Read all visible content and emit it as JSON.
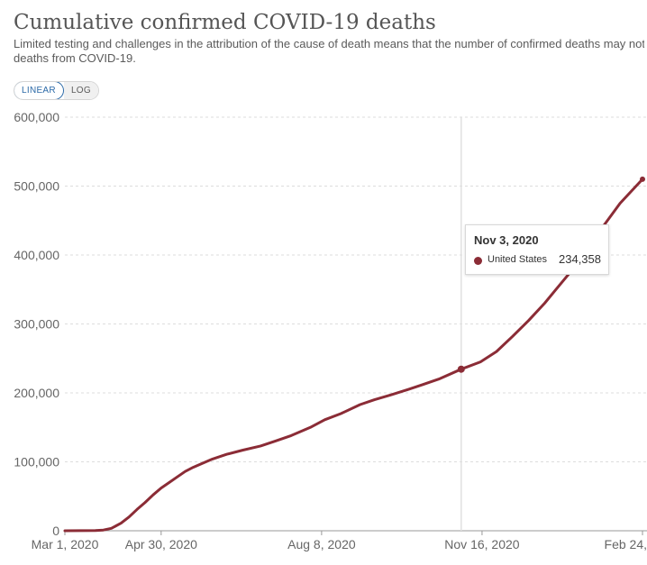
{
  "title": "Cumulative confirmed COVID-19 deaths",
  "subtitle_line1": "Limited testing and challenges in the attribution of the cause of death means that the number of confirmed deaths may not be a",
  "subtitle_line2": "deaths from COVID-19.",
  "scale_toggle": {
    "linear": "LINEAR",
    "log": "LOG",
    "selected": "LINEAR"
  },
  "tooltip": {
    "date": "Nov 3, 2020",
    "series": "United States",
    "value": "234,358"
  },
  "colors": {
    "series": "#8b2c36",
    "grid": "#dddddd",
    "hover_line": "#e0e0e0"
  },
  "chart_data": {
    "type": "line",
    "ylim": [
      0,
      600000
    ],
    "yticks": [
      0,
      100000,
      200000,
      300000,
      400000,
      500000,
      600000
    ],
    "ytick_labels": [
      "0",
      "100,000",
      "200,000",
      "300,000",
      "400,000",
      "500,000",
      "600,000"
    ],
    "xlim": [
      "2020-03-01",
      "2021-02-24"
    ],
    "xticks": [
      "2020-03-01",
      "2020-04-30",
      "2020-08-08",
      "2020-11-16",
      "2021-02-24"
    ],
    "xtick_labels": [
      "Mar 1, 2020",
      "Apr 30, 2020",
      "Aug 8, 2020",
      "Nov 16, 2020",
      "Feb 24,"
    ],
    "highlight_x": "2020-11-03",
    "series": [
      {
        "name": "United States",
        "points": [
          [
            "2020-03-01",
            0
          ],
          [
            "2020-03-20",
            250
          ],
          [
            "2020-03-25",
            1000
          ],
          [
            "2020-03-30",
            3500
          ],
          [
            "2020-04-05",
            11000
          ],
          [
            "2020-04-10",
            20000
          ],
          [
            "2020-04-15",
            31000
          ],
          [
            "2020-04-20",
            41000
          ],
          [
            "2020-04-25",
            52000
          ],
          [
            "2020-04-30",
            62000
          ],
          [
            "2020-05-05",
            70000
          ],
          [
            "2020-05-10",
            78000
          ],
          [
            "2020-05-15",
            86000
          ],
          [
            "2020-05-20",
            92000
          ],
          [
            "2020-05-25",
            97000
          ],
          [
            "2020-06-01",
            104000
          ],
          [
            "2020-06-10",
            111000
          ],
          [
            "2020-06-20",
            117000
          ],
          [
            "2020-07-01",
            123000
          ],
          [
            "2020-07-10",
            130000
          ],
          [
            "2020-07-20",
            138000
          ],
          [
            "2020-08-01",
            150000
          ],
          [
            "2020-08-10",
            161000
          ],
          [
            "2020-08-20",
            170000
          ],
          [
            "2020-09-01",
            183000
          ],
          [
            "2020-09-10",
            190000
          ],
          [
            "2020-09-20",
            197000
          ],
          [
            "2020-10-01",
            205000
          ],
          [
            "2020-10-10",
            212000
          ],
          [
            "2020-10-20",
            220000
          ],
          [
            "2020-11-03",
            234358
          ],
          [
            "2020-11-15",
            245000
          ],
          [
            "2020-11-25",
            260000
          ],
          [
            "2020-12-05",
            282000
          ],
          [
            "2020-12-15",
            305000
          ],
          [
            "2020-12-25",
            330000
          ],
          [
            "2021-01-01",
            350000
          ],
          [
            "2021-01-10",
            375000
          ],
          [
            "2021-01-20",
            408000
          ],
          [
            "2021-01-30",
            440000
          ],
          [
            "2021-02-10",
            475000
          ],
          [
            "2021-02-24",
            510000
          ]
        ]
      }
    ]
  }
}
